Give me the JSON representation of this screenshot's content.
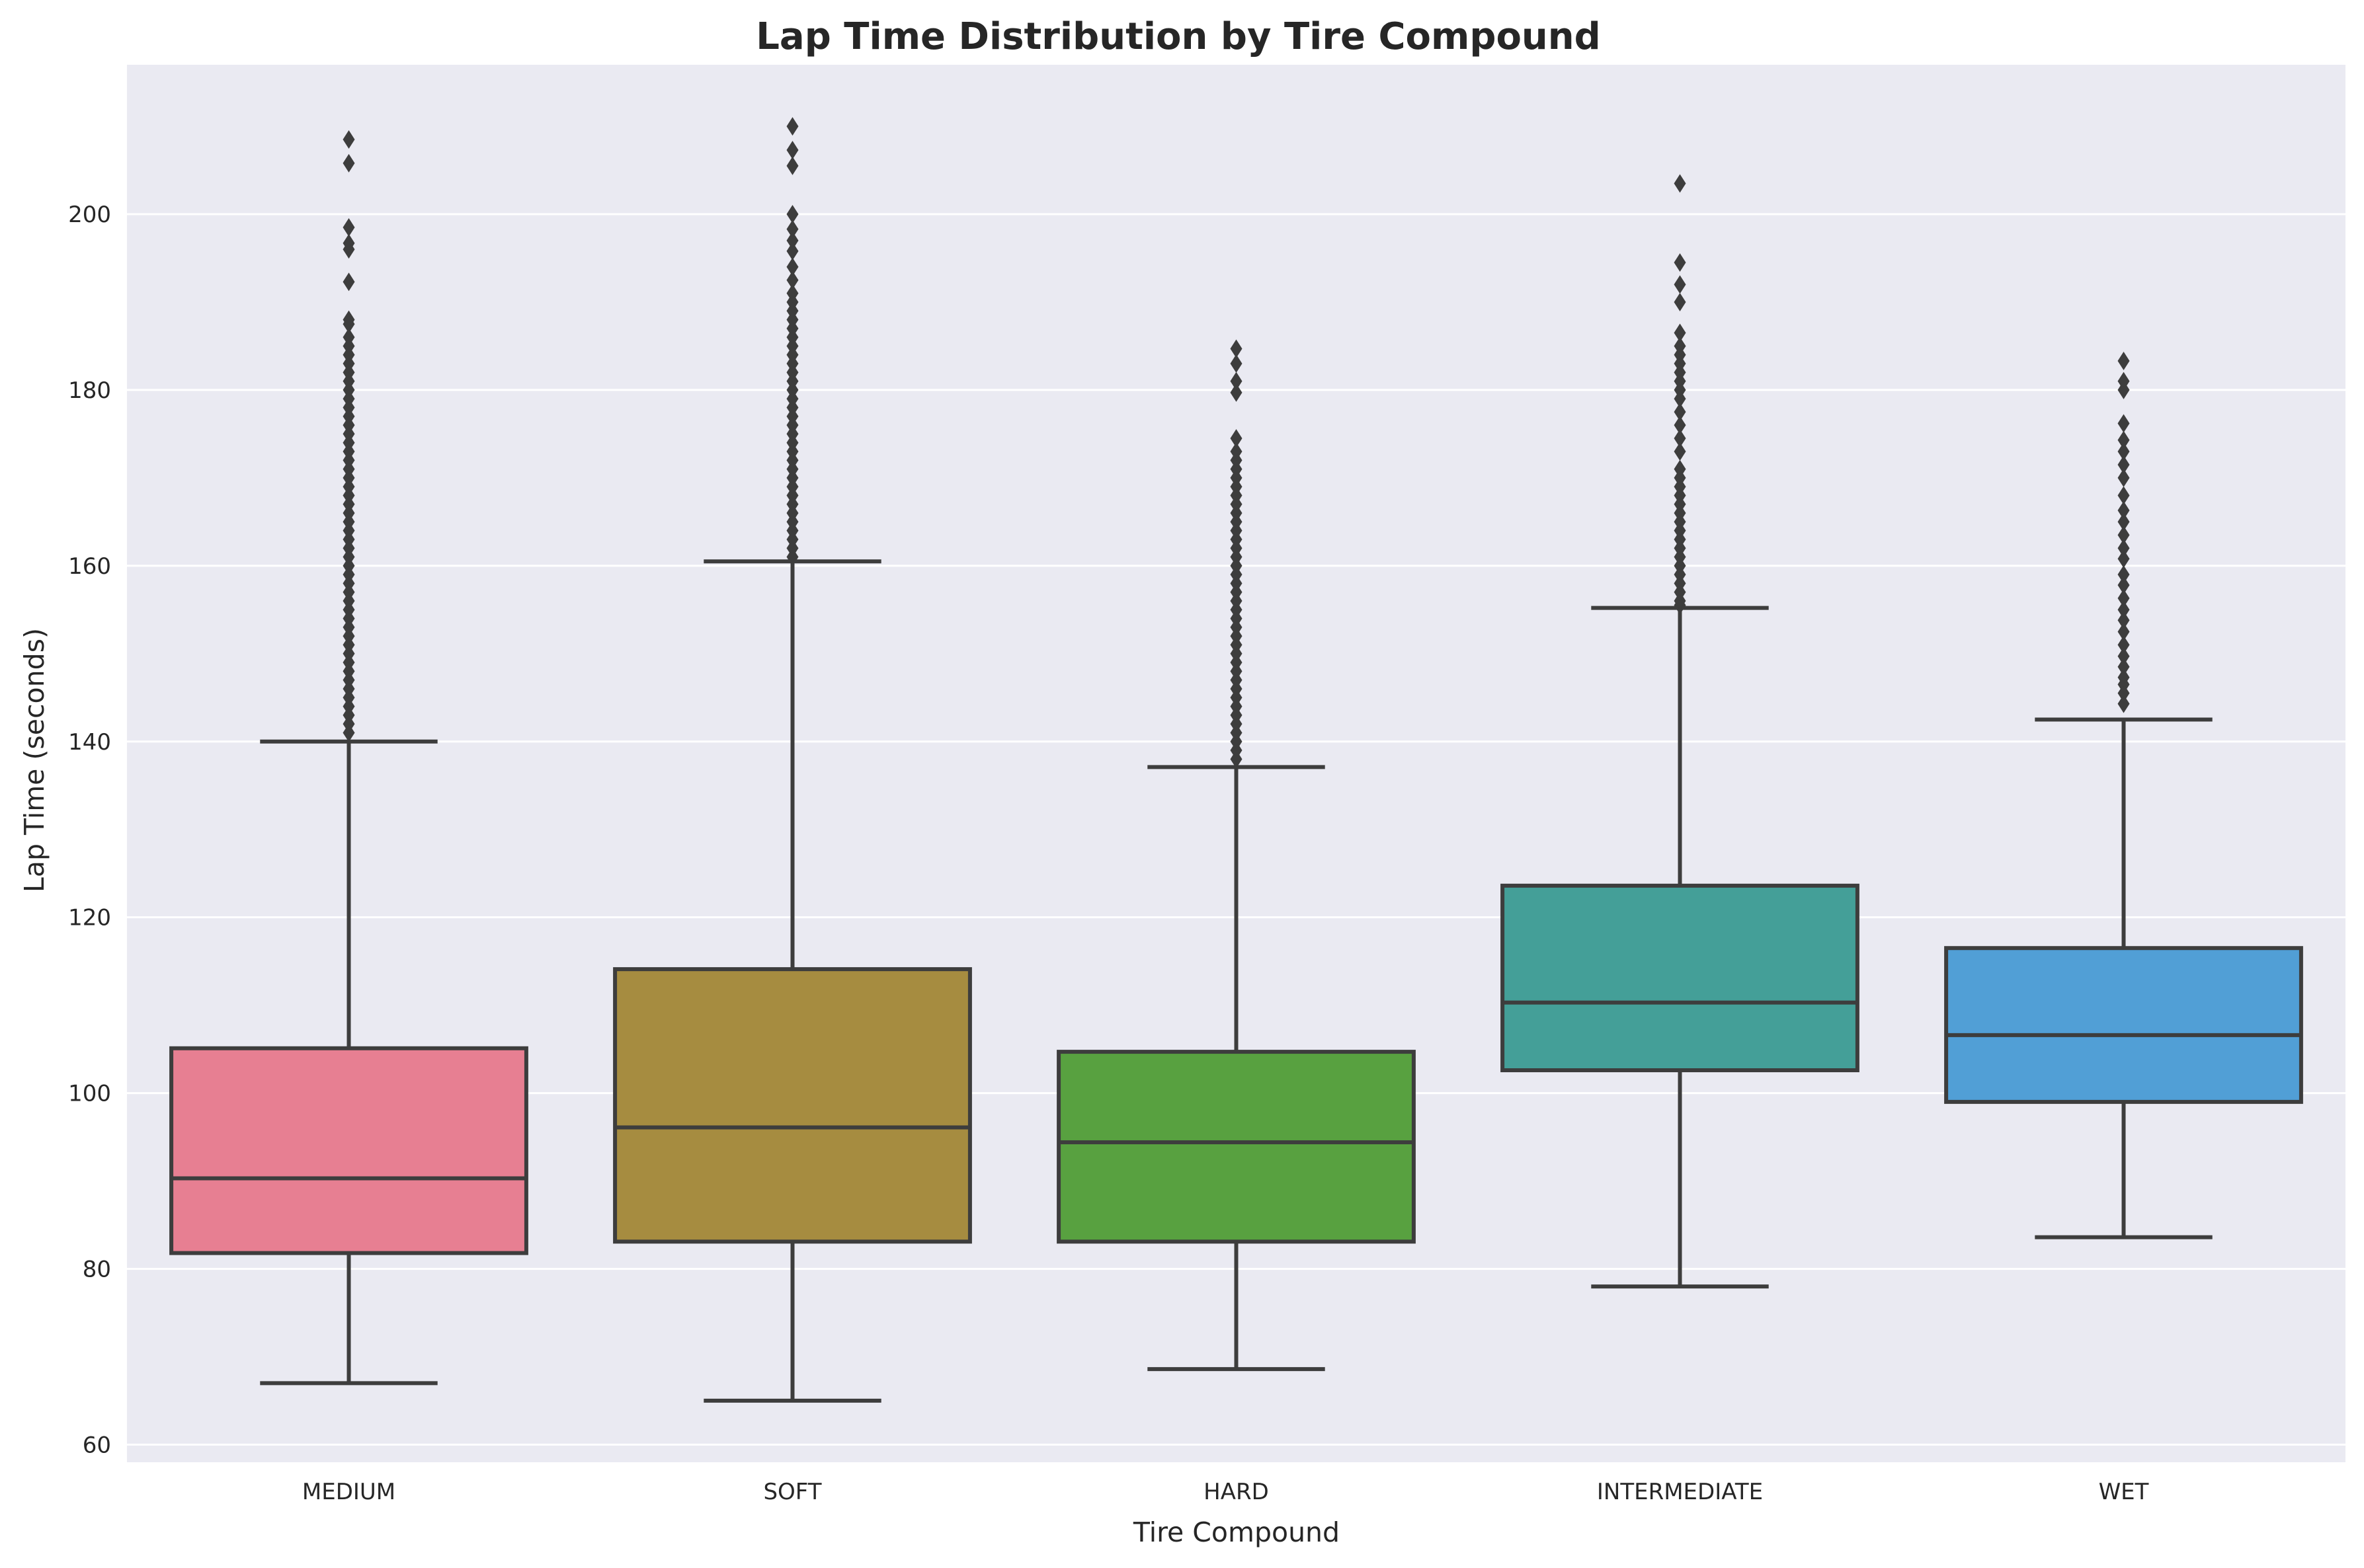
{
  "chart_data": {
    "type": "box",
    "title": "Lap Time Distribution by Tire Compound",
    "xlabel": "Tire Compound",
    "ylabel": "Lap Time (seconds)",
    "ylim": [
      58,
      217
    ],
    "yticks": [
      60,
      80,
      100,
      120,
      140,
      160,
      180,
      200
    ],
    "grid": true,
    "categories": [
      "MEDIUM",
      "SOFT",
      "HARD",
      "INTERMEDIATE",
      "WET"
    ],
    "colors": [
      "#e77f92",
      "#a68c40",
      "#58a140",
      "#449f98",
      "#519fd6"
    ],
    "boxes": [
      {
        "category": "MEDIUM",
        "whisker_low": 67,
        "q1": 81.8,
        "median": 90.3,
        "q3": 105.1,
        "whisker_high": 140,
        "outliers": [
          141,
          142,
          143,
          144,
          145,
          146,
          147,
          148,
          149,
          150,
          151,
          152,
          153,
          154,
          155,
          156,
          157,
          158,
          159,
          160,
          161,
          162,
          163,
          164,
          165,
          166,
          167,
          168,
          169,
          170,
          171,
          172,
          173,
          174,
          175,
          176,
          177,
          178,
          179,
          180,
          181,
          182,
          183,
          184,
          185,
          186,
          187.5,
          188,
          192.3,
          196,
          196.7,
          198.5,
          205.8,
          208.5
        ]
      },
      {
        "category": "SOFT",
        "whisker_low": 65,
        "q1": 83.1,
        "median": 96.1,
        "q3": 114.1,
        "whisker_high": 160.5,
        "outliers": [
          161,
          162,
          163,
          164,
          165,
          166,
          167,
          168,
          169,
          170,
          171,
          172,
          173,
          174,
          175,
          176,
          177,
          178,
          179,
          180,
          181,
          182,
          183,
          184,
          185,
          186,
          187,
          188,
          189,
          190,
          191,
          192.5,
          194,
          195.8,
          197,
          198.3,
          200,
          205.5,
          207.3,
          210
        ]
      },
      {
        "category": "HARD",
        "whisker_low": 68.6,
        "q1": 83.1,
        "median": 94.4,
        "q3": 104.7,
        "whisker_high": 137.1,
        "outliers": [
          138,
          139,
          140,
          141,
          142,
          143,
          144,
          145,
          146,
          147,
          148,
          149,
          150,
          151,
          152,
          153,
          154,
          155,
          156,
          157,
          158,
          159,
          160,
          161,
          162,
          163,
          164,
          165,
          166,
          167,
          168,
          169,
          170,
          171,
          172,
          173,
          174.5,
          179.7,
          181,
          183,
          184.7
        ]
      },
      {
        "category": "INTERMEDIATE",
        "whisker_low": 78,
        "q1": 102.6,
        "median": 110.3,
        "q3": 123.6,
        "whisker_high": 155.2,
        "outliers": [
          155.5,
          156,
          157,
          158,
          159,
          160,
          161,
          162,
          163,
          164,
          165,
          166,
          167,
          168,
          169,
          170,
          171,
          173,
          174.5,
          176,
          177.5,
          179,
          180,
          181,
          182,
          183,
          184,
          185,
          186.5,
          190,
          192,
          194.5,
          203.5
        ]
      },
      {
        "category": "WET",
        "whisker_low": 83.6,
        "q1": 99,
        "median": 106.6,
        "q3": 116.5,
        "whisker_high": 142.5,
        "outliers": [
          144.3,
          145.5,
          146.5,
          147.3,
          148.5,
          149.7,
          151,
          152.5,
          153.8,
          155,
          156.3,
          157.8,
          159,
          160.8,
          162,
          163.5,
          165,
          166.3,
          168,
          170,
          171.5,
          173,
          174.3,
          176.2,
          180,
          181,
          183.3
        ]
      }
    ]
  }
}
